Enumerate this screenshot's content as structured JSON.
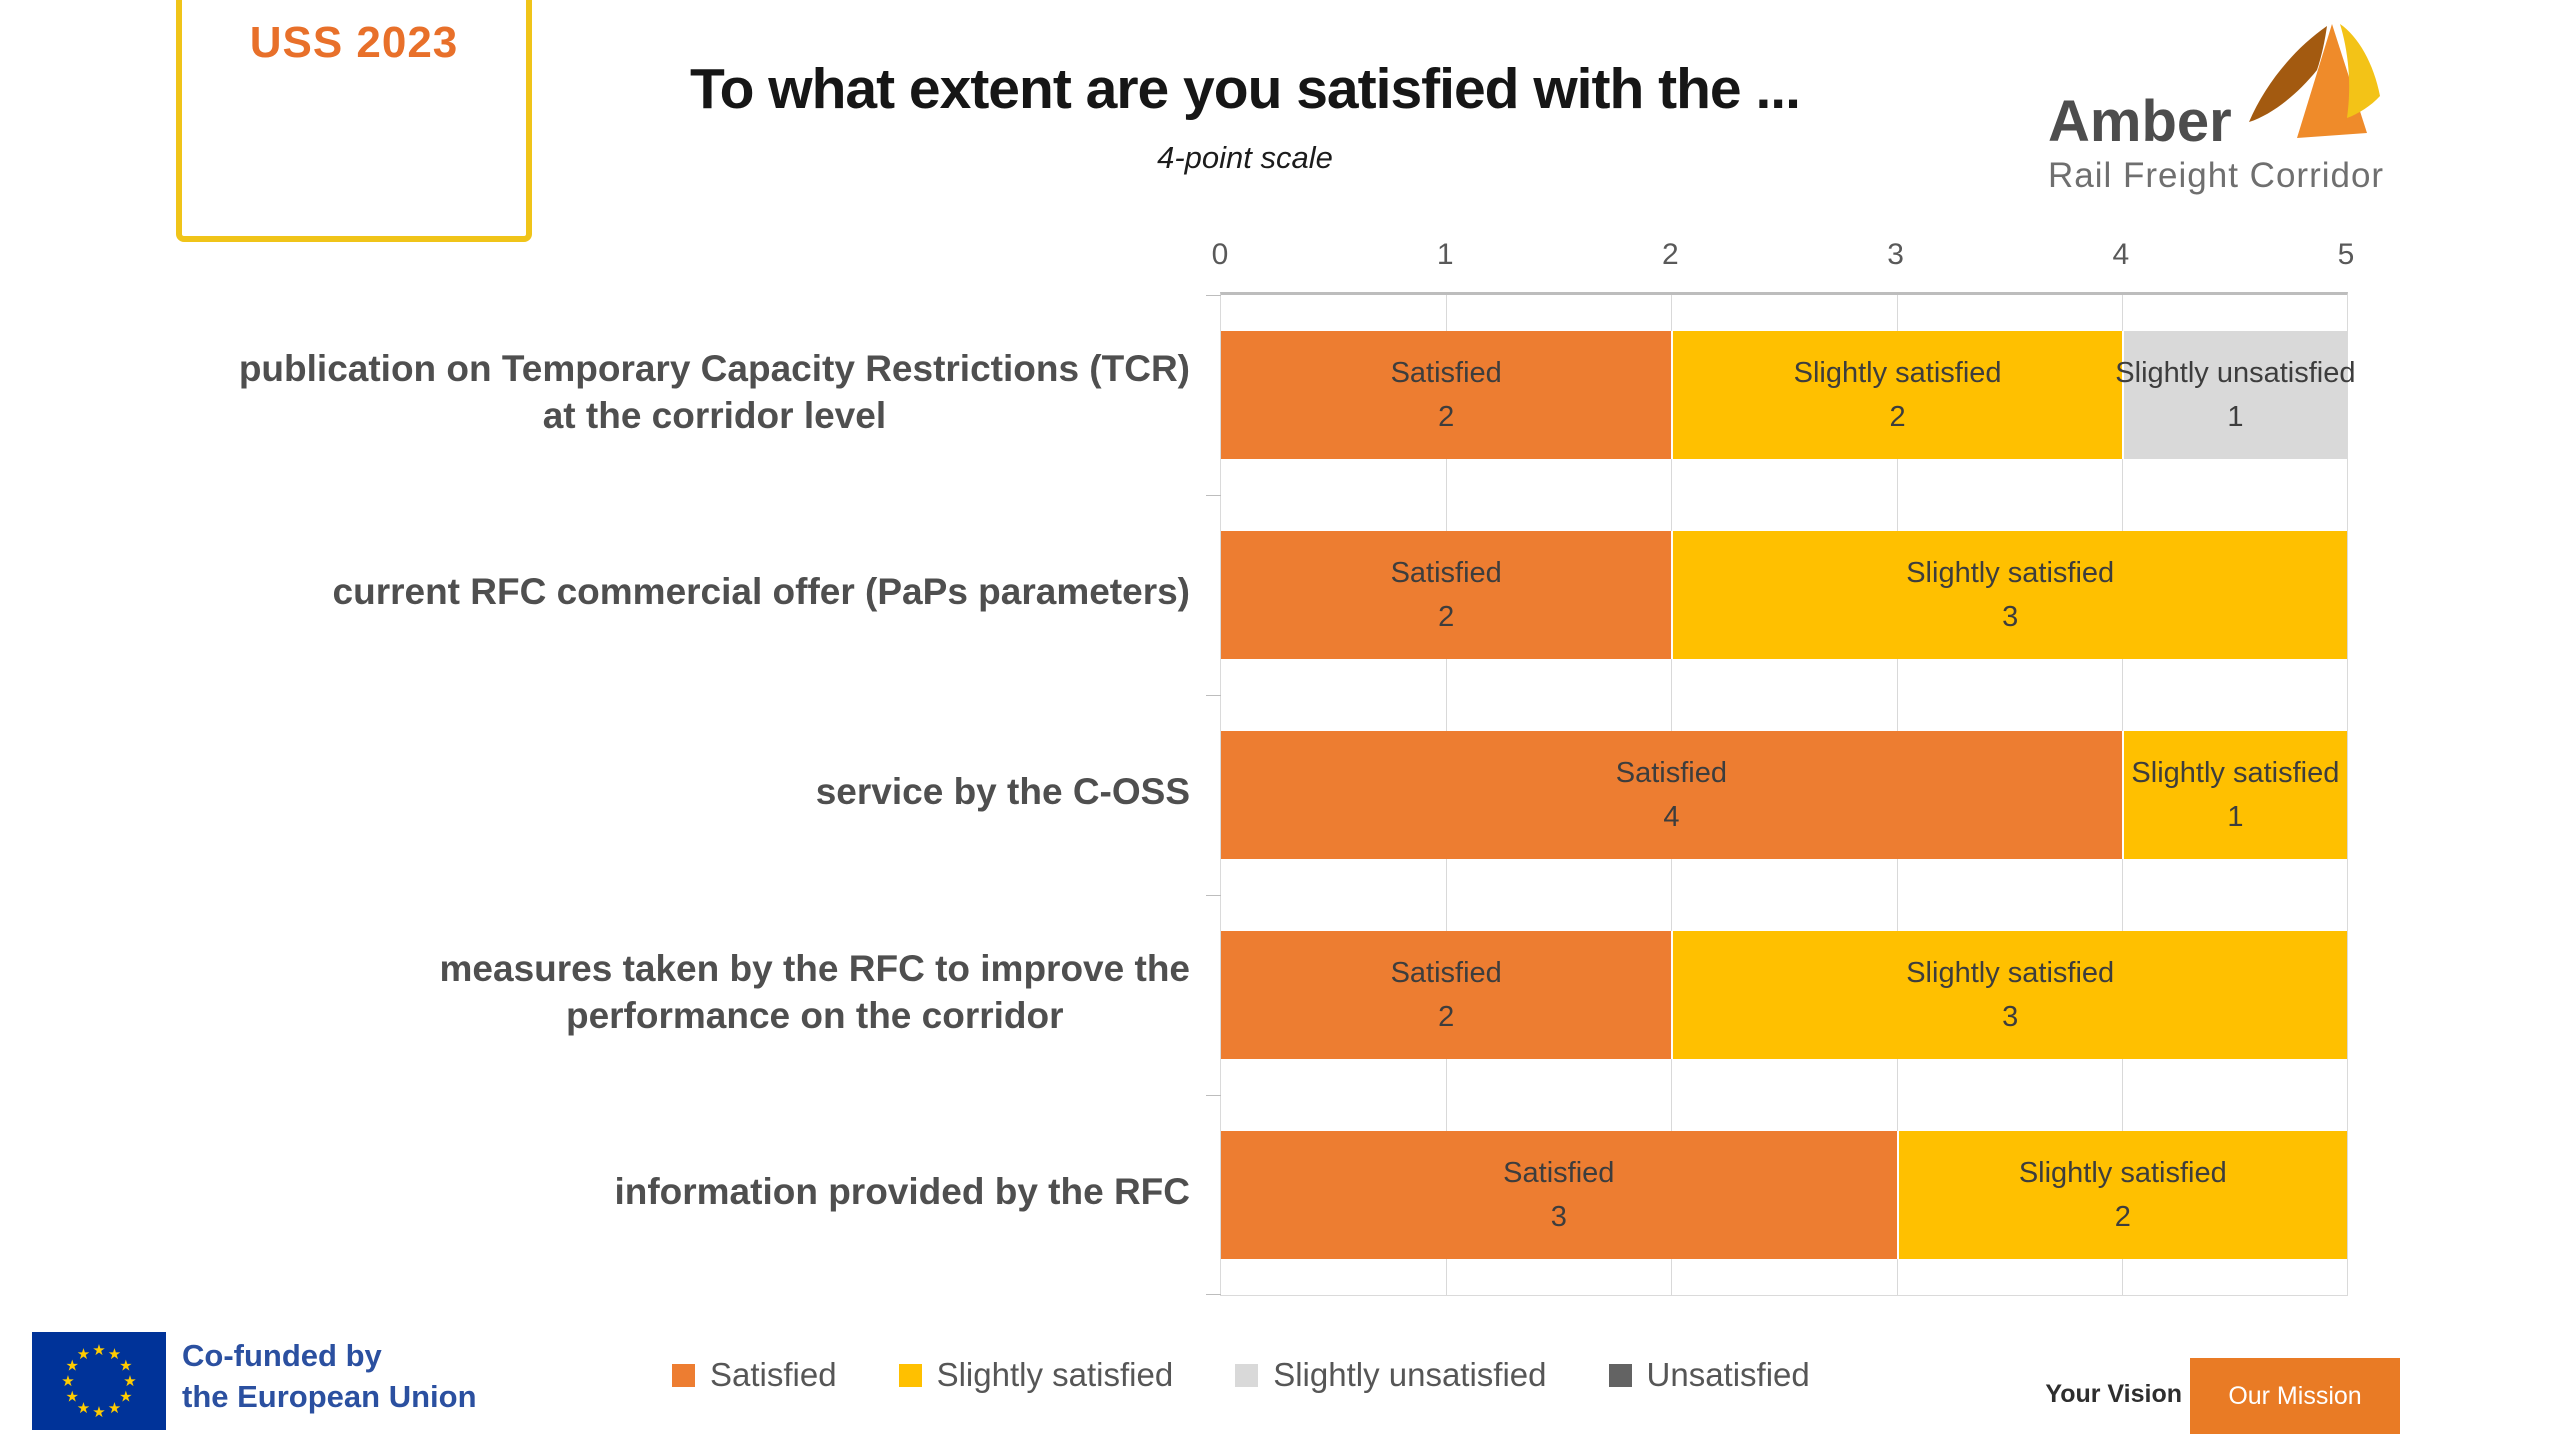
{
  "badge": {
    "label": "USS 2023"
  },
  "header": {
    "title": "To what extent are you satisfied with the ...",
    "subtitle": "4-point scale"
  },
  "logo": {
    "brand": "Amber",
    "tagline": "Rail Freight Corridor"
  },
  "chart_data": {
    "type": "bar",
    "orientation": "horizontal",
    "stacked": true,
    "title": "To what extent are you satisfied with the ...",
    "subtitle": "4-point scale",
    "categories": [
      [
        "publication on Temporary Capacity Restrictions (TCR)",
        "at the corridor level"
      ],
      [
        "current RFC commercial offer (PaPs parameters)"
      ],
      [
        "service by the C-OSS"
      ],
      [
        "measures taken by the RFC to improve the",
        "performance on the corridor"
      ],
      [
        "information provided by the RFC"
      ]
    ],
    "series": [
      {
        "name": "Satisfied",
        "color": "#ED7D31",
        "values": [
          2,
          2,
          4,
          2,
          3
        ]
      },
      {
        "name": "Slightly satisfied",
        "color": "#FFC000",
        "values": [
          2,
          3,
          1,
          3,
          2
        ]
      },
      {
        "name": "Slightly unsatisfied",
        "color": "#D9D9D9",
        "values": [
          1,
          0,
          0,
          0,
          0
        ]
      },
      {
        "name": "Unsatisfied",
        "color": "#636363",
        "values": [
          0,
          0,
          0,
          0,
          0
        ]
      }
    ],
    "xlim": [
      0,
      5
    ],
    "x_ticks": [
      0,
      1,
      2,
      3,
      4,
      5
    ],
    "grid": true,
    "legend_position": "bottom",
    "bar_labels": "name_and_value"
  },
  "footer": {
    "eu_line1": "Co-funded by",
    "eu_line2": "the European Union",
    "vision": "Your Vision",
    "mission": "Our Mission"
  },
  "colors": {
    "accent_orange": "#ED7D31",
    "accent_yellow": "#FFC000",
    "light_gray": "#D9D9D9",
    "dark_gray": "#636363",
    "badge_border": "#F0C419",
    "badge_text": "#E8702A",
    "eu_text_blue": "#2B50A0",
    "eu_flag_blue": "#003399",
    "eu_star_yellow": "#FFCC00",
    "mission_box_orange": "#E97B25"
  }
}
